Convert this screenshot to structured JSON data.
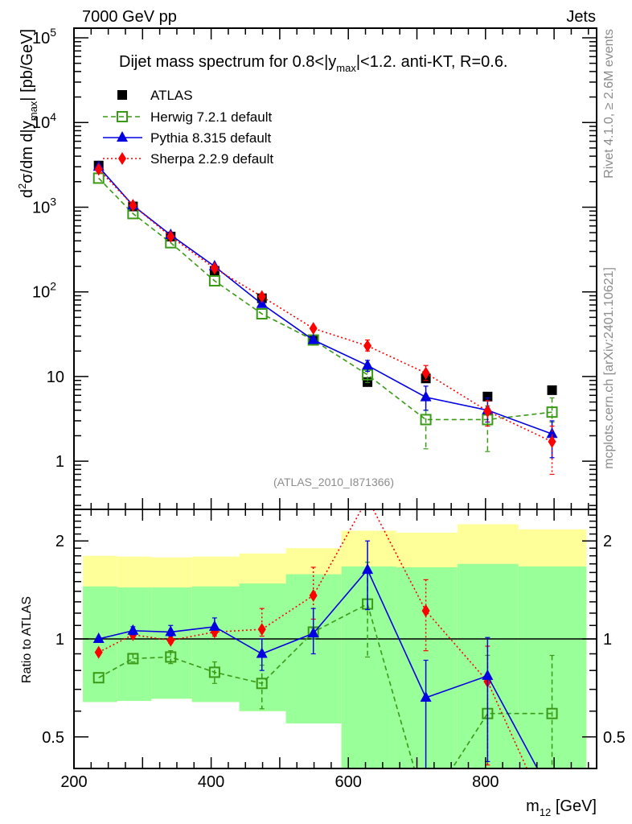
{
  "header": {
    "left_label": "7000 GeV pp",
    "right_label": "Jets",
    "side_label_top": "Rivet 4.1.0, ≥ 2.6M events",
    "side_label_bottom": "mcplots.cern.ch [arXiv:2401.10621]",
    "analysis_id": "(ATLAS_2010_I871366)"
  },
  "colors": {
    "atlas": "#000000",
    "herwig": "#3a9a16",
    "pythia": "#0000e0",
    "sherpa": "#ff0000",
    "band_outer": "#ffff99",
    "band_inner": "#99ff99"
  },
  "chart_data": [
    {
      "type": "scatter",
      "panel": "main",
      "title": "Dijet mass spectrum for 0.8<|ymax|<1.2.  anti-KT, R=0.6.",
      "title_parts": {
        "pre": "Dijet mass spectrum for 0.8<|y",
        "sub": "max",
        "post": "|<1.2.  anti-KT, R=0.6."
      },
      "ylabel_parts": {
        "a": "d",
        "sup": "2",
        "b": "σ/dm d|y",
        "sub": "max",
        "c": "| [pb/GeV]"
      },
      "yscale": "log",
      "ylim": [
        0.27,
        130000
      ],
      "xlim": [
        200,
        962
      ],
      "ytick_labels": [
        {
          "value": 100000,
          "base": "10",
          "exp": "5"
        },
        {
          "value": 10000,
          "base": "10",
          "exp": "4"
        },
        {
          "value": 1000,
          "base": "10",
          "exp": "3"
        },
        {
          "value": 100,
          "base": "10",
          "exp": "2"
        },
        {
          "value": 10,
          "base": "10",
          "exp": ""
        },
        {
          "value": 1,
          "base": "1",
          "exp": ""
        }
      ],
      "legend_position": "top-left",
      "x": [
        236,
        286,
        341,
        405,
        474,
        549,
        628,
        713,
        803,
        897
      ],
      "series": [
        {
          "name": "ATLAS",
          "key": "atlas",
          "marker": "filled-square",
          "line": "none",
          "values": [
            3100,
            1020,
            450,
            177,
            84,
            27,
            8.6,
            9.5,
            5.8,
            6.9
          ]
        },
        {
          "name": "Herwig 7.2.1 default",
          "key": "herwig",
          "marker": "open-square",
          "line": "dashed",
          "values": [
            2200,
            840,
            380,
            135,
            55,
            27,
            10.5,
            3.1,
            3.1,
            3.8
          ],
          "err_lo": [
            0,
            0,
            0,
            0,
            0,
            0,
            2,
            1.7,
            1.8,
            0.9
          ],
          "err_hi": [
            0,
            0,
            0,
            0,
            0,
            0,
            2,
            0.9,
            1.4,
            1.8
          ]
        },
        {
          "name": "Pythia 8.315 default",
          "key": "pythia",
          "marker": "filled-triangle",
          "line": "solid",
          "values": [
            3000,
            1050,
            470,
            200,
            72,
            27,
            13.5,
            5.7,
            4.0,
            2.1
          ],
          "err_lo": [
            0,
            0,
            0,
            0,
            0,
            0,
            2,
            1.7,
            1.1,
            1.0
          ],
          "err_hi": [
            0,
            0,
            0,
            0,
            0,
            0,
            2,
            2,
            1.6,
            0.9
          ]
        },
        {
          "name": "Sherpa 2.2.9 default",
          "key": "sherpa",
          "marker": "filled-diamond",
          "line": "dotted",
          "values": [
            2800,
            1050,
            450,
            190,
            88,
            37,
            23,
            11,
            3.9,
            1.7
          ],
          "err_lo": [
            0,
            0,
            0,
            0,
            0,
            0,
            3,
            2,
            1.3,
            1.0
          ],
          "err_hi": [
            0,
            0,
            0,
            0,
            0,
            0,
            4,
            2.5,
            1.3,
            0.9
          ]
        }
      ]
    },
    {
      "type": "scatter",
      "panel": "ratio",
      "ylabel": "Ratio to ATLAS",
      "xlabel_parts": {
        "a": "m",
        "sub": "12",
        "b": " [GeV]"
      },
      "yscale": "log",
      "ylim": [
        0.4,
        2.5
      ],
      "xlim": [
        200,
        962
      ],
      "xtick_labels": [
        "200",
        "400",
        "600",
        "800"
      ],
      "xtick_values": [
        200,
        400,
        600,
        800
      ],
      "ytick_labels": [
        "0.5",
        "1",
        "2"
      ],
      "ytick_values": [
        0.5,
        1,
        2
      ],
      "reference_line": 1,
      "bin_edges": [
        213,
        263,
        313,
        372,
        441,
        509,
        590,
        670,
        759,
        848,
        947
      ],
      "bands": {
        "outer_hi": [
          1.8,
          1.79,
          1.78,
          1.79,
          1.83,
          1.9,
          2.15,
          2.12,
          2.25,
          2.17
        ],
        "outer_lo": [
          0.64,
          0.645,
          0.655,
          0.64,
          0.6,
          0.55,
          0.33,
          0.35,
          0.33,
          0.33
        ],
        "inner_hi": [
          1.45,
          1.44,
          1.44,
          1.45,
          1.48,
          1.58,
          1.67,
          1.66,
          1.7,
          1.67
        ],
        "inner_lo": [
          0.64,
          0.645,
          0.655,
          0.64,
          0.6,
          0.55,
          0.33,
          0.35,
          0.33,
          0.33
        ]
      },
      "x": [
        236,
        286,
        341,
        405,
        474,
        549,
        628,
        713,
        803,
        897
      ],
      "series": [
        {
          "name": "Herwig 7.2.1 default",
          "key": "herwig",
          "values": [
            0.76,
            0.87,
            0.88,
            0.79,
            0.73,
            1.05,
            1.28,
            0.3,
            0.59,
            0.59
          ],
          "err_lo": [
            0,
            0.02,
            0.04,
            0.06,
            0.12,
            0.05,
            0.4,
            0,
            0.27,
            0.25
          ],
          "err_hi": [
            0,
            0.03,
            0.04,
            0.06,
            0.1,
            0.03,
            0.44,
            0,
            0.3,
            0.3
          ]
        },
        {
          "name": "Pythia 8.315 default",
          "key": "pythia",
          "values": [
            1.0,
            1.06,
            1.05,
            1.09,
            0.9,
            1.04,
            1.63,
            0.66,
            0.77,
            0.33
          ],
          "err_lo": [
            0,
            0.03,
            0.03,
            0,
            0.1,
            0.14,
            0.4,
            0.26,
            0.35,
            0
          ],
          "err_hi": [
            0,
            0.03,
            0.05,
            0.07,
            0.1,
            0.2,
            0.37,
            0.2,
            0.24,
            0
          ]
        },
        {
          "name": "Sherpa 2.2.9 default",
          "key": "sherpa",
          "values": [
            0.91,
            1.03,
            0.99,
            1.05,
            1.07,
            1.36,
            2.7,
            1.22,
            0.74,
            0.27
          ],
          "err_lo": [
            0,
            0.02,
            0.02,
            0.03,
            0.05,
            0.21,
            0,
            0.3,
            0.33,
            0
          ],
          "err_hi": [
            0,
            0.02,
            0.02,
            0.03,
            0.17,
            0.3,
            0,
            0.3,
            0.21,
            0
          ]
        }
      ]
    }
  ]
}
